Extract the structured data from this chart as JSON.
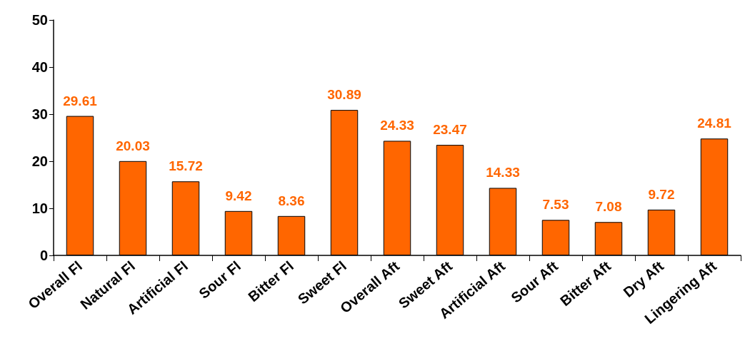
{
  "chart_data": {
    "type": "bar",
    "categories": [
      "Overall Fl",
      "Natural Fl",
      "Artificial Fl",
      "Sour Fl",
      "Bitter Fl",
      "Sweet Fl",
      "Overall Aft",
      "Sweet Aft",
      "Artificial Aft",
      "Sour Aft",
      "Bitter Aft",
      "Dry Aft",
      "Lingering Aft"
    ],
    "values": [
      29.61,
      20.03,
      15.72,
      9.42,
      8.36,
      30.89,
      24.33,
      23.47,
      14.33,
      7.53,
      7.08,
      9.72,
      24.81
    ],
    "color": "#ff6600",
    "ylim": [
      0,
      50
    ],
    "yticks": [
      0,
      10,
      20,
      30,
      40,
      50
    ],
    "data_labels": true,
    "grid": false
  }
}
